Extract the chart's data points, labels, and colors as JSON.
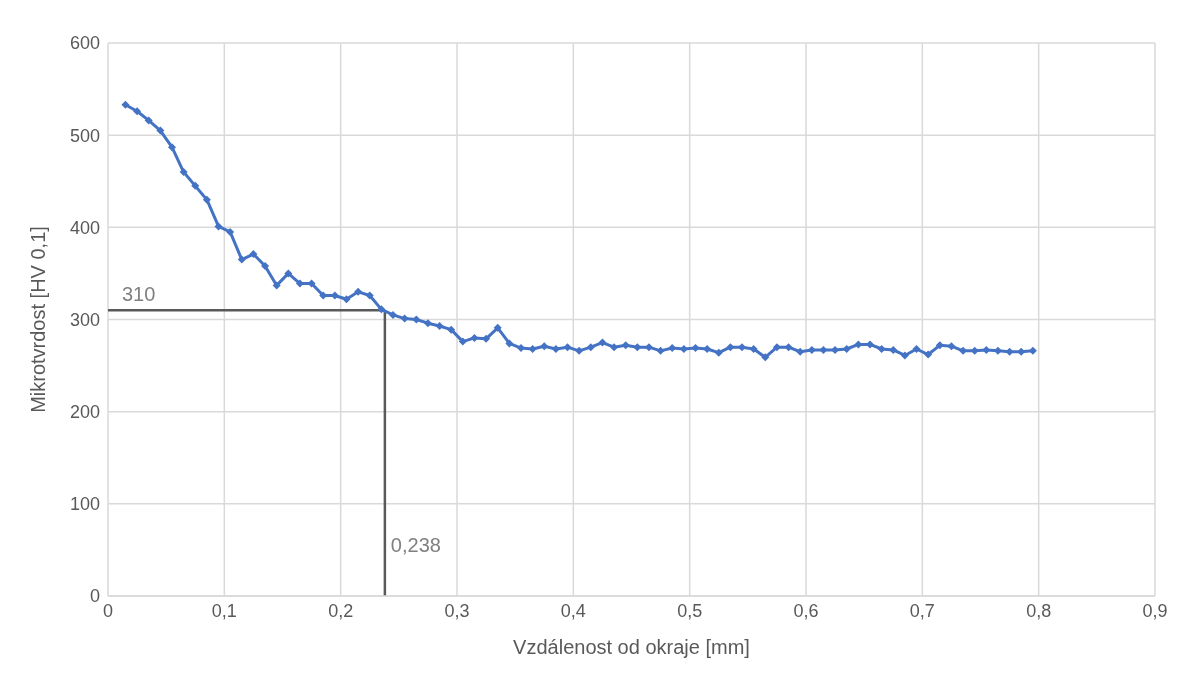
{
  "chart_data": {
    "type": "line",
    "xlabel": "Vzdálenost od okraje [mm]",
    "ylabel": "Mikrotvrdost [HV 0,1]",
    "x": [
      0.015,
      0.025,
      0.035,
      0.045,
      0.055,
      0.065,
      0.075,
      0.085,
      0.095,
      0.105,
      0.115,
      0.125,
      0.135,
      0.145,
      0.155,
      0.165,
      0.175,
      0.185,
      0.195,
      0.205,
      0.215,
      0.225,
      0.235,
      0.245,
      0.255,
      0.265,
      0.275,
      0.285,
      0.295,
      0.305,
      0.315,
      0.325,
      0.335,
      0.345,
      0.355,
      0.365,
      0.375,
      0.385,
      0.395,
      0.405,
      0.415,
      0.425,
      0.435,
      0.445,
      0.455,
      0.465,
      0.475,
      0.485,
      0.495,
      0.505,
      0.515,
      0.525,
      0.535,
      0.545,
      0.555,
      0.565,
      0.575,
      0.585,
      0.595,
      0.605,
      0.615,
      0.625,
      0.635,
      0.645,
      0.655,
      0.665,
      0.675,
      0.685,
      0.695,
      0.705,
      0.715,
      0.725,
      0.735,
      0.745,
      0.755,
      0.765,
      0.775,
      0.785,
      0.795
    ],
    "series": [
      {
        "color": "#4472c4",
        "values": [
          533,
          526,
          516,
          505,
          487,
          460,
          445,
          430,
          401,
          395,
          365,
          371,
          358,
          337,
          350,
          339,
          339,
          326,
          326,
          322,
          330,
          326,
          311,
          305,
          301,
          300,
          296,
          293,
          289,
          276,
          280,
          279,
          291,
          274,
          269,
          268,
          271,
          268,
          270,
          266,
          270,
          275,
          270,
          272,
          270,
          270,
          266,
          269,
          268,
          269,
          268,
          264,
          270,
          270,
          268,
          259,
          270,
          270,
          265,
          267,
          267,
          267,
          268,
          273,
          273,
          268,
          267,
          261,
          268,
          262,
          272,
          271,
          266,
          266,
          267,
          266,
          265,
          265,
          266
        ]
      }
    ],
    "xlim": [
      0,
      0.9
    ],
    "xticks": [
      0,
      {
        "value": 0.1,
        "label": "0,1"
      },
      {
        "value": 0.2,
        "label": "0,2"
      },
      {
        "value": 0.3,
        "label": "0,3"
      },
      {
        "value": 0.4,
        "label": "0,4"
      },
      {
        "value": 0.5,
        "label": "0,5"
      },
      {
        "value": 0.6,
        "label": "0,6"
      },
      {
        "value": 0.7,
        "label": "0,7"
      },
      {
        "value": 0.8,
        "label": "0,8"
      },
      {
        "value": 0.9,
        "label": "0,9"
      }
    ],
    "ylim": [
      0,
      600
    ],
    "yticks": [
      0,
      100,
      200,
      300,
      400,
      500,
      600
    ],
    "ref_lines": [
      {
        "axis": "y",
        "value": 310,
        "label": "310",
        "color": "#595959"
      },
      {
        "axis": "x",
        "value": 0.238,
        "label": "0,238",
        "color": "#595959"
      }
    ],
    "grid": true,
    "marker": "diamond",
    "line_style": "solid"
  }
}
